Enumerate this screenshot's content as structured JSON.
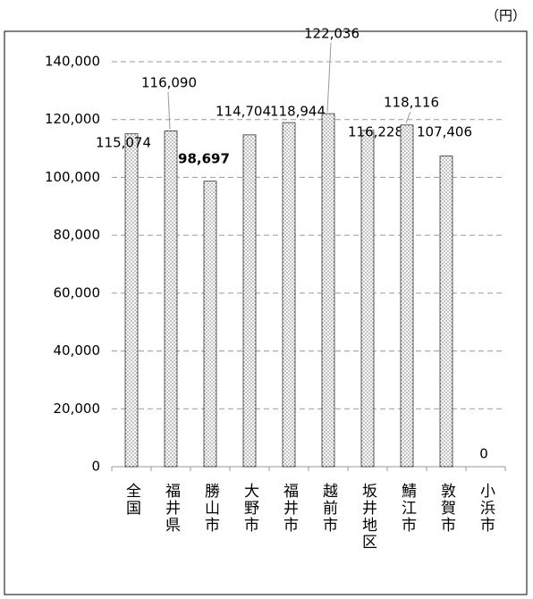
{
  "chart_data": {
    "type": "bar",
    "unit": "（円）",
    "categories": [
      "全国",
      "福井県",
      "勝山市",
      "大野市",
      "福井市",
      "越前市",
      "坂井地区",
      "鯖江市",
      "敦賀市",
      "小浜市"
    ],
    "values": [
      115074,
      116090,
      98697,
      114704,
      118944,
      122036,
      116228,
      118116,
      107406,
      0
    ],
    "value_labels": [
      "115,074",
      "116,090",
      "98,697",
      "114,704",
      "118,944",
      "122,036",
      "116,228",
      "118,116",
      "107,406",
      "0"
    ],
    "color": "#c8c8c8",
    "ylim": [
      0,
      140000
    ],
    "yticks": [
      0,
      {
        "value": 20000,
        "label": "20,000"
      },
      {
        "value": 40000,
        "label": "40,000"
      },
      {
        "value": 60000,
        "label": "60,000"
      },
      {
        "value": 80000,
        "label": "80,000"
      },
      {
        "value": 100000,
        "label": "100,000"
      },
      {
        "value": 120000,
        "label": "120,000"
      },
      {
        "value": 140000,
        "label": "140,000"
      }
    ],
    "grid": true
  }
}
